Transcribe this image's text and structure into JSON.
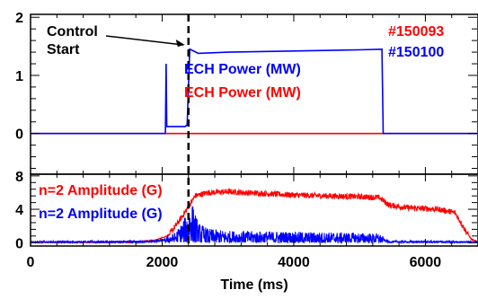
{
  "chart_data": {
    "type": "line",
    "xlabel": "Time (ms)",
    "x_ticks": [
      0,
      2000,
      4000,
      6000
    ],
    "control_start_ms": 2400,
    "annotations": {
      "control_start": "Control\nStart",
      "shot_red": "#150093",
      "shot_blue": "#150100"
    },
    "colors": {
      "red": "#ff0000",
      "blue": "#0000ff",
      "axis": "#000000"
    },
    "panels": [
      {
        "id": "top",
        "xlim": [
          0,
          6800
        ],
        "ylim": [
          -0.7,
          2.05
        ],
        "y_ticks": [
          0,
          1,
          2
        ],
        "series": [
          {
            "name": "ECH Power (MW)",
            "color": "#0000ff",
            "shot": "#150100",
            "points": [
              [
                0,
                0
              ],
              [
                2000,
                0
              ],
              [
                2050,
                0
              ],
              [
                2060,
                1.2
              ],
              [
                2070,
                0.12
              ],
              [
                2350,
                0.12
              ],
              [
                2380,
                0.15
              ],
              [
                2420,
                1.45
              ],
              [
                2550,
                1.38
              ],
              [
                3000,
                1.4
              ],
              [
                4000,
                1.42
              ],
              [
                5000,
                1.44
              ],
              [
                5340,
                1.45
              ],
              [
                5360,
                0
              ],
              [
                6800,
                0
              ]
            ]
          },
          {
            "name": "ECH Power (MW)",
            "color": "#ff0000",
            "shot": "#150093",
            "points": [
              [
                0,
                0
              ],
              [
                6800,
                0
              ]
            ]
          }
        ]
      },
      {
        "id": "bottom",
        "xlim": [
          0,
          6800
        ],
        "ylim": [
          -0.4,
          8.2
        ],
        "y_ticks": [
          0,
          4,
          8
        ],
        "series": [
          {
            "name": "n=2 Amplitude (G)",
            "color": "#ff0000",
            "shot": "#150093",
            "points": [
              [
                0,
                0
              ],
              [
                1500,
                0.05
              ],
              [
                1900,
                0.3
              ],
              [
                2100,
                0.9
              ],
              [
                2250,
                2.5
              ],
              [
                2400,
                4.3
              ],
              [
                2500,
                5.6
              ],
              [
                2700,
                6
              ],
              [
                3000,
                6.1
              ],
              [
                3500,
                5.9
              ],
              [
                4000,
                5.7
              ],
              [
                4500,
                5.6
              ],
              [
                5000,
                5.5
              ],
              [
                5300,
                5.4
              ],
              [
                5450,
                4.5
              ],
              [
                5700,
                4.2
              ],
              [
                6200,
                4
              ],
              [
                6450,
                3.6
              ],
              [
                6600,
                1.6
              ],
              [
                6700,
                0.4
              ],
              [
                6800,
                0.1
              ]
            ]
          },
          {
            "name": "n=2 Amplitude (G)",
            "color": "#0000ff",
            "shot": "#150100",
            "points": [
              [
                0,
                0.05
              ],
              [
                1800,
                0.1
              ],
              [
                2000,
                0.25
              ],
              [
                2200,
                0.5
              ],
              [
                2350,
                1.3
              ],
              [
                2450,
                2.1
              ],
              [
                2550,
                1
              ],
              [
                2700,
                0.7
              ],
              [
                3000,
                0.6
              ],
              [
                4000,
                0.55
              ],
              [
                5000,
                0.5
              ],
              [
                5300,
                0.45
              ],
              [
                5450,
                0.1
              ],
              [
                6800,
                0.05
              ]
            ]
          }
        ]
      }
    ]
  }
}
